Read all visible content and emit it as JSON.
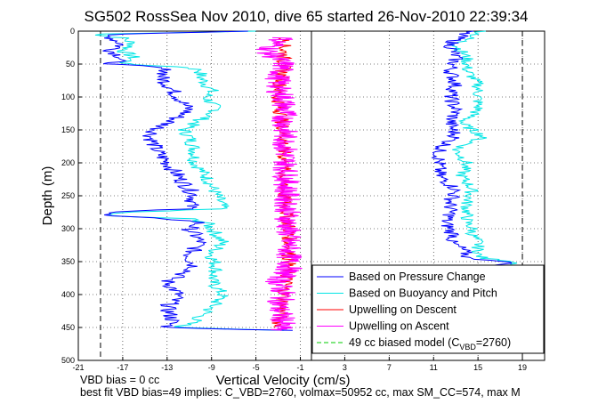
{
  "chart_data": {
    "type": "line",
    "title": "SG502 RossSea Nov 2010, dive 65 started 26-Nov-2010 22:39:34",
    "xlabel": "Vertical Velocity (cm/s)",
    "ylabel": "Depth (m)",
    "x_ticks": [
      "-21",
      "-17",
      "-13",
      "-9",
      "-5",
      "-1",
      "3",
      "7",
      "11",
      "15",
      "19"
    ],
    "y_ticks": [
      "0",
      "50",
      "100",
      "150",
      "200",
      "250",
      "300",
      "350",
      "400",
      "450",
      "500"
    ],
    "xlim": [
      -21,
      21
    ],
    "ylim": [
      500,
      0
    ],
    "grid": true,
    "legend_position": "bottom-right",
    "dashed_reference_x": [
      -19,
      19
    ],
    "solid_reference_x": [
      0
    ],
    "series": [
      {
        "name": "Based on Pressure Change",
        "color": "#0000ff",
        "style": "solid",
        "depth": [
          0,
          5,
          10,
          20,
          30,
          40,
          50,
          55,
          60,
          70,
          80,
          90,
          100,
          120,
          150,
          160,
          180,
          200,
          220,
          250,
          270,
          275,
          280,
          285,
          290,
          300,
          320,
          340,
          360,
          380,
          400,
          420,
          440,
          450,
          455
        ],
        "x_descent": [
          -5,
          -19,
          -18,
          -17,
          -18,
          -17,
          -18,
          -14,
          -13,
          -13.5,
          -13,
          -12.5,
          -12,
          -11,
          -14,
          -14.5,
          -14,
          -13,
          -12,
          -10.5,
          -11,
          -18,
          -19,
          -13,
          -10,
          -11,
          -10,
          -11,
          -10.5,
          -13,
          -12,
          -13,
          -12.5,
          -13,
          -1
        ],
        "x_ascent": [
          14,
          12.5,
          13,
          12.5,
          13,
          12.5,
          13,
          12.5,
          13,
          11.5,
          11.5,
          11.5,
          13,
          12.5,
          12.5,
          12,
          12.5,
          12.5,
          13,
          12.5,
          13.5,
          14,
          14,
          18,
          17,
          18,
          11,
          10.5
        ],
        "depth_ascent": [
          0,
          20,
          40,
          60,
          80,
          100,
          120,
          140,
          160,
          180,
          200,
          220,
          240,
          260,
          280,
          290,
          300,
          305,
          310,
          320,
          330,
          340,
          345,
          350,
          355,
          360,
          365,
          370
        ]
      },
      {
        "name": "Based on Buoyancy and Pitch",
        "color": "#00e5e5",
        "style": "solid",
        "depth": [
          0,
          5,
          10,
          20,
          30,
          40,
          50,
          55,
          60,
          70,
          80,
          90,
          100,
          120,
          150,
          160,
          180,
          200,
          220,
          250,
          270,
          275,
          280,
          285,
          290,
          300,
          320,
          340,
          360,
          380,
          400,
          420,
          440,
          450,
          455
        ],
        "x_descent": [
          -5,
          -20,
          -17,
          -16,
          -17,
          -16,
          -17,
          -11,
          -10,
          -10,
          -9.5,
          -9,
          -9.5,
          -8.5,
          -11.5,
          -11,
          -10.5,
          -10.5,
          -9.5,
          -8.5,
          -8,
          -17,
          -19,
          -11,
          -9.5,
          -9,
          -8,
          -9,
          -8.5,
          -9,
          -8,
          -9,
          -10.5,
          -12,
          -1
        ],
        "x_ascent": [
          15.5,
          13,
          14,
          14,
          15,
          15,
          15,
          13.5,
          15.5,
          13,
          14,
          13.5,
          14.5,
          14,
          14,
          14,
          14.5,
          14.5,
          14.5,
          15,
          15,
          15,
          15.5,
          18.5,
          18.5,
          19,
          11.5,
          10.5
        ],
        "depth_ascent": [
          0,
          20,
          40,
          60,
          80,
          100,
          120,
          140,
          160,
          180,
          200,
          220,
          240,
          260,
          280,
          290,
          300,
          305,
          310,
          320,
          330,
          340,
          345,
          350,
          355,
          360,
          365,
          370
        ]
      },
      {
        "name": "Upwelling on Descent",
        "color": "#ff0000",
        "style": "solid",
        "depth": [
          10,
          50,
          100,
          150,
          200,
          250,
          300,
          350,
          400,
          450
        ],
        "x": [
          -2.5,
          -2.5,
          -3,
          -2.5,
          -2.5,
          -2.5,
          -2,
          -2,
          -2.5,
          -3
        ]
      },
      {
        "name": "Upwelling on Ascent",
        "color": "#ff00ff",
        "style": "solid",
        "depth": [
          10,
          30,
          50,
          70,
          90,
          100,
          360,
          380,
          400,
          420,
          440,
          455
        ],
        "x": [
          -2.5,
          -4,
          -2.5,
          -3,
          -3,
          -2.5,
          -2,
          -3,
          -2.5,
          -3,
          -2.5,
          -3
        ]
      },
      {
        "name": "49 cc biased model (C",
        "name_sub": "VBD",
        "name_tail": "=2760)",
        "color": "#00cc00",
        "style": "dashed"
      }
    ],
    "notes": [
      "VBD bias = 0 cc",
      "best fit VBD bias=49 implies: C_VBD=2760, volmax=50952 cc, max SM_CC=574, max M"
    ]
  }
}
